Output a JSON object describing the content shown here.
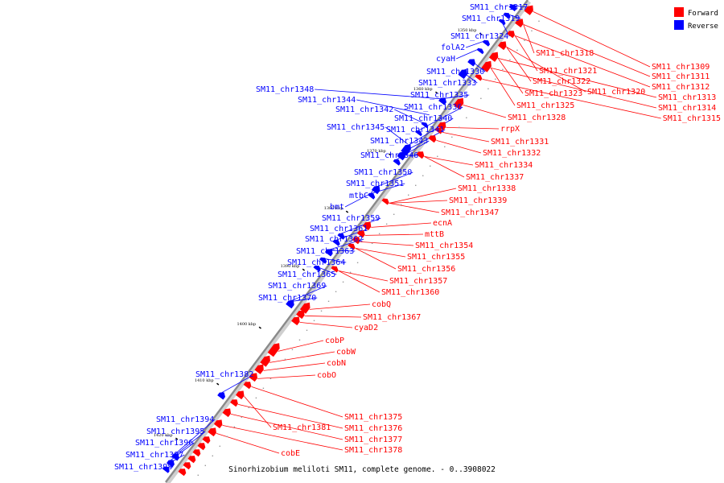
{
  "caption": "Sinorhizobium meliloti SM11, complete genome. - 0..3908022",
  "legend": [
    {
      "label": "Forward",
      "color": "#ff0000"
    },
    {
      "label": "Reverse",
      "color": "#0000ff"
    }
  ],
  "colors": {
    "forward": "#ff0000",
    "reverse": "#0000ff",
    "axis": "#888888"
  },
  "ticks": [
    "1350 kbp",
    "1360 kbp",
    "1370 kbp",
    "1380 kbp",
    "1390 kbp",
    "1400 kbp",
    "1410 kbp",
    "1420 kbp"
  ],
  "reverse_labels": [
    "SM11_chr1317",
    "SM11_chr1319",
    "SM11_chr1324",
    "folA2",
    "cyaH",
    "SM11_chr1330",
    "SM11_chr1333",
    "SM11_chr1348",
    "SM11_chr1335",
    "SM11_chr1344",
    "SM11_chr1342",
    "SM11_chr1336",
    "SM11_chr1340",
    "SM11_chr1345",
    "SM11_chr1341",
    "SM11_chr1343",
    "SM11_chr1346",
    "SM11_chr1350",
    "SM11_chr1351",
    "mtbC",
    "bmt",
    "SM11_chr1359",
    "SM11_chr1361",
    "SM11_chr1362",
    "SM11_chr1363",
    "SM11_chr1364",
    "SM11_chr1365",
    "SM11_chr1369",
    "SM11_chr1370",
    "SM11_chr1382",
    "SM11_chr1394",
    "SM11_chr1395",
    "SM11_chr1396",
    "SM11_chr1397",
    "SM11_chr1398"
  ],
  "forward_labels": [
    "SM11_chr1309",
    "SM11_chr1318",
    "SM11_chr1311",
    "SM11_chr1321",
    "SM11_chr1312",
    "SM11_chr1322",
    "SM11_chr1320",
    "SM11_chr1313",
    "SM11_chr1323",
    "SM11_chr1325",
    "SM11_chr1314",
    "SM11_chr1315",
    "SM11_chr1328",
    "rrpX",
    "SM11_chr1331",
    "SM11_chr1332",
    "SM11_chr1334",
    "SM11_chr1337",
    "SM11_chr1338",
    "SM11_chr1339",
    "SM11_chr1347",
    "ecnA",
    "mttB",
    "SM11_chr1354",
    "SM11_chr1355",
    "SM11_chr1356",
    "SM11_chr1357",
    "SM11_chr1360",
    "cobQ",
    "SM11_chr1367",
    "cyaD2",
    "cobP",
    "cobW",
    "cobN",
    "cobO",
    "SM11_chr1375",
    "SM11_chr1381",
    "SM11_chr1376",
    "SM11_chr1377",
    "SM11_chr1378",
    "cobE"
  ]
}
